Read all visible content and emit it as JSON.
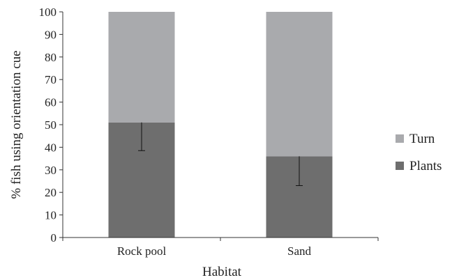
{
  "chart_data": {
    "type": "bar",
    "stacked": true,
    "categories": [
      "Rock pool",
      "Sand"
    ],
    "series": [
      {
        "name": "Plants",
        "values": [
          51,
          36
        ],
        "color": "#6e6e6e",
        "error": [
          12.5,
          13
        ]
      },
      {
        "name": "Turn",
        "values": [
          49,
          64
        ],
        "color": "#a9aaad"
      }
    ],
    "xlabel": "Habitat",
    "ylabel": "% fish using orientation cue",
    "ylim": [
      0,
      100
    ],
    "yticks": [
      0,
      10,
      20,
      30,
      40,
      50,
      60,
      70,
      80,
      90,
      100
    ],
    "grid": false,
    "legend": "right",
    "legend_order": [
      "Turn",
      "Plants"
    ]
  }
}
